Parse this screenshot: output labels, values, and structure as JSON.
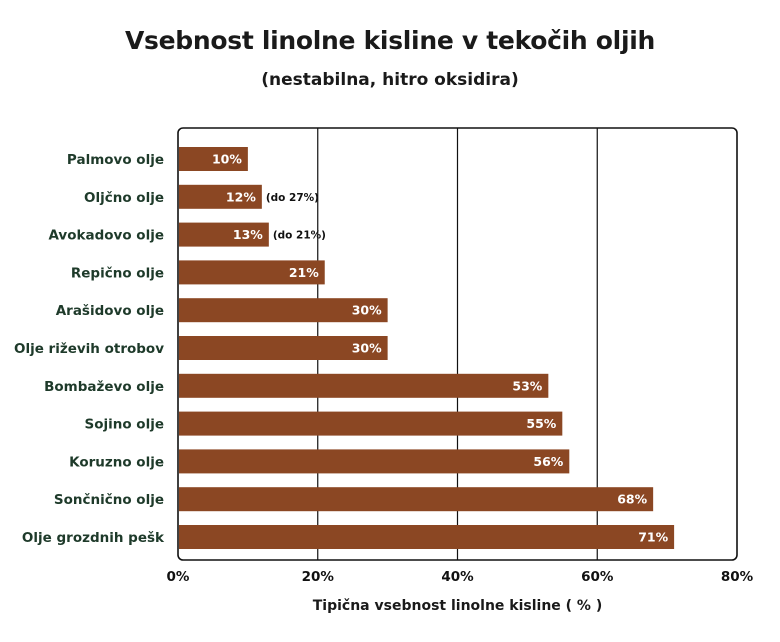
{
  "chart_data": {
    "type": "bar",
    "orientation": "horizontal",
    "title": "Vsebnost linolne kisline v tekočih oljih",
    "subtitle": "(nestabilna, hitro oksidira)",
    "xlabel": "Tipična vsebnost linolne kisline ( % )",
    "ylabel": "",
    "xlim": [
      0,
      80
    ],
    "x_ticks": [
      "0%",
      "20%",
      "40%",
      "60%",
      "80%"
    ],
    "x_tick_values": [
      0,
      20,
      40,
      60,
      80
    ],
    "grid": true,
    "categories": [
      "Palmovo olje",
      "Oljčno olje",
      "Avokadovo olje",
      "Repično olje",
      "Arašidovo olje",
      "Olje riževih otrobov",
      "Bombaževo olje",
      "Sojino olje",
      "Koruzno olje",
      "Sončnično olje",
      "Olje grozdnih pešk"
    ],
    "values": [
      10,
      12,
      13,
      21,
      30,
      30,
      53,
      55,
      56,
      68,
      71
    ],
    "data_labels": [
      "10%",
      "12%",
      "13%",
      "21%",
      "30%",
      "30%",
      "53%",
      "55%",
      "56%",
      "68%",
      "71%"
    ],
    "annotations": [
      "",
      "(do 27%)",
      "(do 21%)",
      "",
      "",
      "",
      "",
      "",
      "",
      "",
      ""
    ],
    "colors": {
      "bar": "#8b4723",
      "grid": "#111111",
      "category_text": "#1e3a2a"
    }
  }
}
